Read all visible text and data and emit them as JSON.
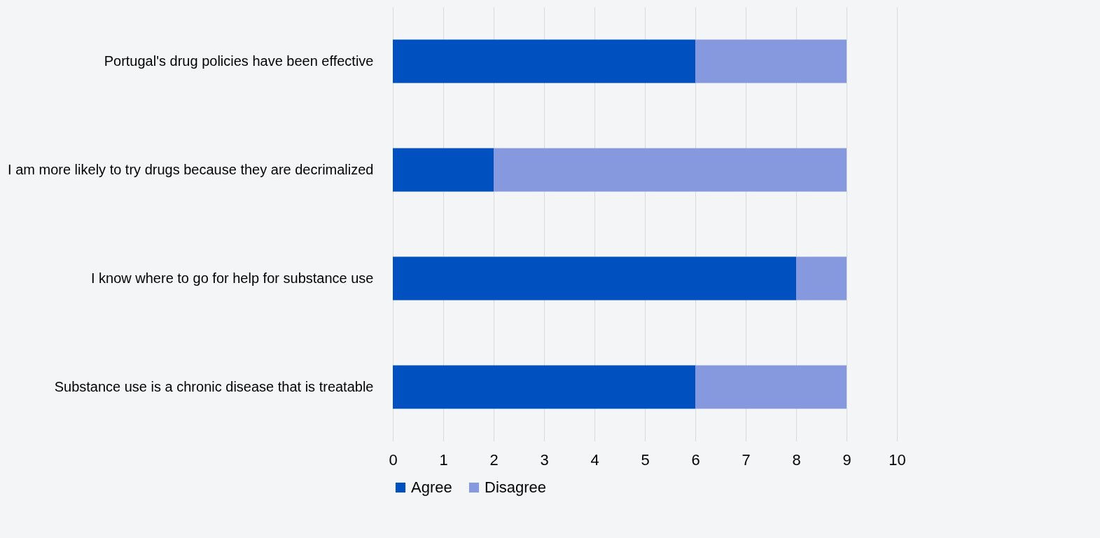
{
  "chart_data": {
    "type": "bar",
    "orientation": "horizontal",
    "stacked": true,
    "categories": [
      "Portugal's drug policies have been effective",
      "I am more likely to try drugs because they are decrimalized",
      "I know where to go for help for substance use",
      "Substance use is a chronic disease that is treatable"
    ],
    "series": [
      {
        "name": "Agree",
        "color": "#0051bf",
        "values": [
          6,
          2,
          8,
          6
        ]
      },
      {
        "name": "Disagree",
        "color": "#8799de",
        "values": [
          3,
          7,
          1,
          3
        ]
      }
    ],
    "xlim": [
      0,
      10
    ],
    "xticks": [
      0,
      1,
      2,
      3,
      4,
      5,
      6,
      7,
      8,
      9,
      10
    ],
    "grid": "x",
    "legend": "bottom"
  }
}
